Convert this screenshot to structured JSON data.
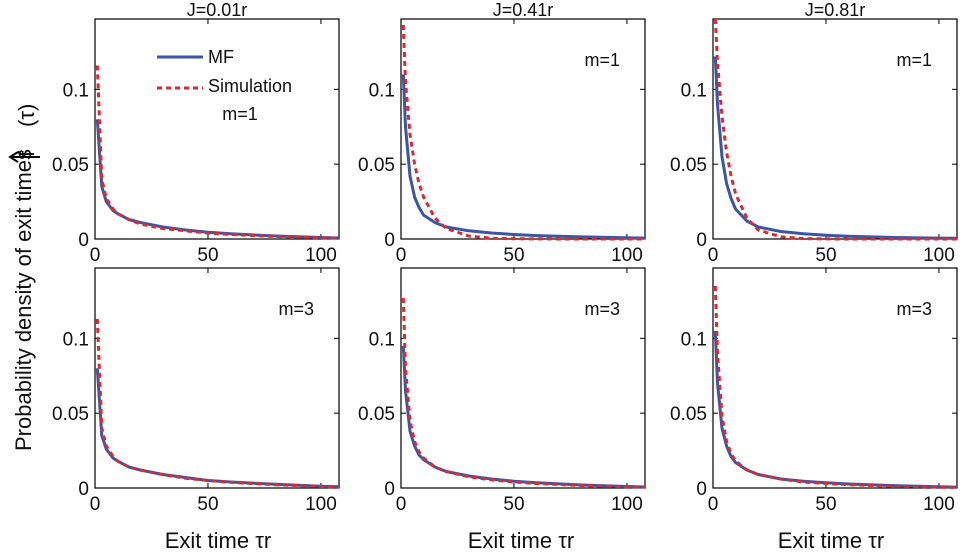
{
  "figure": {
    "ylabel_text": "Probability density of exit times",
    "ylabel_symbol": "f",
    "ylabel_tau": "(τ)",
    "xlabel": "Exit time τr"
  },
  "legend": {
    "mf": "MF",
    "sim": "Simulation",
    "placement": "top-right of first panel"
  },
  "colors": {
    "mf": "#3a56a6",
    "sim": "#e0282e",
    "axis": "#000000"
  },
  "chart_data": [
    {
      "type": "line",
      "title": "J=0.01r",
      "annotation": "m=1",
      "xlim": [
        0,
        108
      ],
      "ylim": [
        0,
        0.147
      ],
      "xticks": [
        {
          "v": 0,
          "t": "0"
        },
        {
          "v": 50,
          "t": "50"
        },
        {
          "v": 100,
          "t": "100"
        }
      ],
      "yticks": [
        {
          "v": 0,
          "t": "0"
        },
        {
          "v": 0.05,
          "t": "0.05"
        },
        {
          "v": 0.1,
          "t": "0.1"
        }
      ],
      "series": [
        {
          "name": "MF",
          "style": "solid",
          "x": [
            1,
            3,
            5,
            8,
            10,
            15,
            20,
            30,
            40,
            50,
            60,
            80,
            100,
            108
          ],
          "y": [
            0.08,
            0.035,
            0.025,
            0.019,
            0.017,
            0.013,
            0.011,
            0.008,
            0.006,
            0.0045,
            0.0035,
            0.002,
            0.001,
            0.0007
          ]
        },
        {
          "name": "Simulation",
          "style": "dashed",
          "x": [
            1,
            3,
            5,
            8,
            10,
            15,
            20,
            30,
            40,
            50,
            60,
            80,
            100,
            108
          ],
          "y": [
            0.116,
            0.04,
            0.027,
            0.02,
            0.017,
            0.013,
            0.01,
            0.007,
            0.0055,
            0.004,
            0.003,
            0.0017,
            0.0008,
            0.0006
          ]
        }
      ]
    },
    {
      "type": "line",
      "title": "J=0.41r",
      "annotation": "m=1",
      "xlim": [
        0,
        108
      ],
      "ylim": [
        0,
        0.147
      ],
      "xticks": [
        {
          "v": 0,
          "t": "0"
        },
        {
          "v": 50,
          "t": "50"
        },
        {
          "v": 100,
          "t": "100"
        }
      ],
      "yticks": [
        {
          "v": 0,
          "t": "0"
        },
        {
          "v": 0.05,
          "t": "0.05"
        },
        {
          "v": 0.1,
          "t": "0.1"
        }
      ],
      "series": [
        {
          "name": "MF",
          "style": "solid",
          "x": [
            1,
            2,
            4,
            6,
            8,
            10,
            15,
            20,
            30,
            40,
            50,
            60,
            80,
            100,
            108
          ],
          "y": [
            0.11,
            0.075,
            0.042,
            0.028,
            0.021,
            0.016,
            0.011,
            0.008,
            0.0055,
            0.004,
            0.003,
            0.0023,
            0.0014,
            0.0008,
            0.0006
          ]
        },
        {
          "name": "Simulation",
          "style": "dashed",
          "x": [
            1,
            2,
            4,
            6,
            8,
            10,
            15,
            20,
            30,
            40,
            50,
            60,
            80,
            100,
            108
          ],
          "y": [
            0.143,
            0.105,
            0.07,
            0.05,
            0.037,
            0.028,
            0.014,
            0.007,
            0.002,
            0.0005,
            0.0002,
            0.0001,
            0,
            0,
            0
          ]
        }
      ]
    },
    {
      "type": "line",
      "title": "J=0.81r",
      "annotation": "m=1",
      "xlim": [
        0,
        108
      ],
      "ylim": [
        0,
        0.147
      ],
      "xticks": [
        {
          "v": 0,
          "t": "0"
        },
        {
          "v": 50,
          "t": "50"
        },
        {
          "v": 100,
          "t": "100"
        }
      ],
      "yticks": [
        {
          "v": 0,
          "t": "0"
        },
        {
          "v": 0.05,
          "t": "0.05"
        },
        {
          "v": 0.1,
          "t": "0.1"
        }
      ],
      "series": [
        {
          "name": "MF",
          "style": "solid",
          "x": [
            1,
            2,
            4,
            6,
            8,
            10,
            15,
            20,
            30,
            40,
            50,
            60,
            80,
            100,
            108
          ],
          "y": [
            0.122,
            0.09,
            0.055,
            0.037,
            0.027,
            0.02,
            0.012,
            0.008,
            0.005,
            0.0035,
            0.0025,
            0.0018,
            0.001,
            0.0006,
            0.0005
          ]
        },
        {
          "name": "Simulation",
          "style": "dashed",
          "x": [
            1,
            2,
            4,
            6,
            8,
            10,
            15,
            20,
            30,
            40,
            50,
            60,
            80,
            100,
            108
          ],
          "y": [
            0.147,
            0.118,
            0.082,
            0.058,
            0.042,
            0.03,
            0.014,
            0.006,
            0.0015,
            0.0003,
            0.0001,
            0,
            0,
            0,
            0
          ]
        }
      ]
    },
    {
      "type": "line",
      "title": "",
      "annotation": "m=3",
      "xlim": [
        0,
        108
      ],
      "ylim": [
        0,
        0.147
      ],
      "xticks": [
        {
          "v": 0,
          "t": "0"
        },
        {
          "v": 50,
          "t": "50"
        },
        {
          "v": 100,
          "t": "100"
        }
      ],
      "yticks": [
        {
          "v": 0,
          "t": "0"
        },
        {
          "v": 0.05,
          "t": "0.05"
        },
        {
          "v": 0.1,
          "t": "0.1"
        }
      ],
      "series": [
        {
          "name": "MF",
          "style": "solid",
          "x": [
            1,
            3,
            5,
            8,
            10,
            15,
            20,
            30,
            40,
            50,
            60,
            80,
            100,
            108
          ],
          "y": [
            0.08,
            0.035,
            0.026,
            0.02,
            0.018,
            0.014,
            0.012,
            0.009,
            0.007,
            0.005,
            0.004,
            0.0025,
            0.0012,
            0.0008
          ]
        },
        {
          "name": "Simulation",
          "style": "dashed",
          "x": [
            1,
            3,
            5,
            8,
            10,
            15,
            20,
            30,
            40,
            50,
            60,
            80,
            100,
            108
          ],
          "y": [
            0.113,
            0.04,
            0.028,
            0.021,
            0.018,
            0.014,
            0.012,
            0.009,
            0.0065,
            0.005,
            0.0038,
            0.0022,
            0.001,
            0.0007
          ]
        }
      ]
    },
    {
      "type": "line",
      "title": "",
      "annotation": "m=3",
      "xlim": [
        0,
        108
      ],
      "ylim": [
        0,
        0.147
      ],
      "xticks": [
        {
          "v": 0,
          "t": "0"
        },
        {
          "v": 50,
          "t": "50"
        },
        {
          "v": 100,
          "t": "100"
        }
      ],
      "yticks": [
        {
          "v": 0,
          "t": "0"
        },
        {
          "v": 0.05,
          "t": "0.05"
        },
        {
          "v": 0.1,
          "t": "0.1"
        }
      ],
      "series": [
        {
          "name": "MF",
          "style": "solid",
          "x": [
            1,
            2,
            4,
            6,
            8,
            10,
            15,
            20,
            30,
            40,
            50,
            60,
            80,
            100,
            108
          ],
          "y": [
            0.095,
            0.065,
            0.038,
            0.028,
            0.022,
            0.019,
            0.014,
            0.011,
            0.008,
            0.006,
            0.0045,
            0.0035,
            0.002,
            0.001,
            0.0007
          ]
        },
        {
          "name": "Simulation",
          "style": "dashed",
          "x": [
            1,
            2,
            4,
            6,
            8,
            10,
            15,
            20,
            30,
            40,
            50,
            60,
            80,
            100,
            108
          ],
          "y": [
            0.127,
            0.08,
            0.045,
            0.031,
            0.024,
            0.02,
            0.014,
            0.011,
            0.0075,
            0.0055,
            0.004,
            0.003,
            0.0017,
            0.0008,
            0.0006
          ]
        }
      ]
    },
    {
      "type": "line",
      "title": "",
      "annotation": "m=3",
      "xlim": [
        0,
        108
      ],
      "ylim": [
        0,
        0.147
      ],
      "xticks": [
        {
          "v": 0,
          "t": "0"
        },
        {
          "v": 50,
          "t": "50"
        },
        {
          "v": 100,
          "t": "100"
        }
      ],
      "yticks": [
        {
          "v": 0,
          "t": "0"
        },
        {
          "v": 0.05,
          "t": "0.05"
        },
        {
          "v": 0.1,
          "t": "0.1"
        }
      ],
      "series": [
        {
          "name": "MF",
          "style": "solid",
          "x": [
            1,
            2,
            4,
            6,
            8,
            10,
            15,
            20,
            30,
            40,
            50,
            60,
            80,
            100,
            108
          ],
          "y": [
            0.105,
            0.07,
            0.04,
            0.028,
            0.021,
            0.017,
            0.012,
            0.009,
            0.006,
            0.0045,
            0.0035,
            0.0027,
            0.0016,
            0.0008,
            0.0006
          ]
        },
        {
          "name": "Simulation",
          "style": "dashed",
          "x": [
            1,
            2,
            4,
            6,
            8,
            10,
            15,
            20,
            30,
            40,
            50,
            60,
            80,
            100,
            108
          ],
          "y": [
            0.135,
            0.09,
            0.048,
            0.031,
            0.023,
            0.018,
            0.012,
            0.009,
            0.006,
            0.004,
            0.003,
            0.0022,
            0.0012,
            0.0006,
            0.0004
          ]
        }
      ]
    }
  ]
}
